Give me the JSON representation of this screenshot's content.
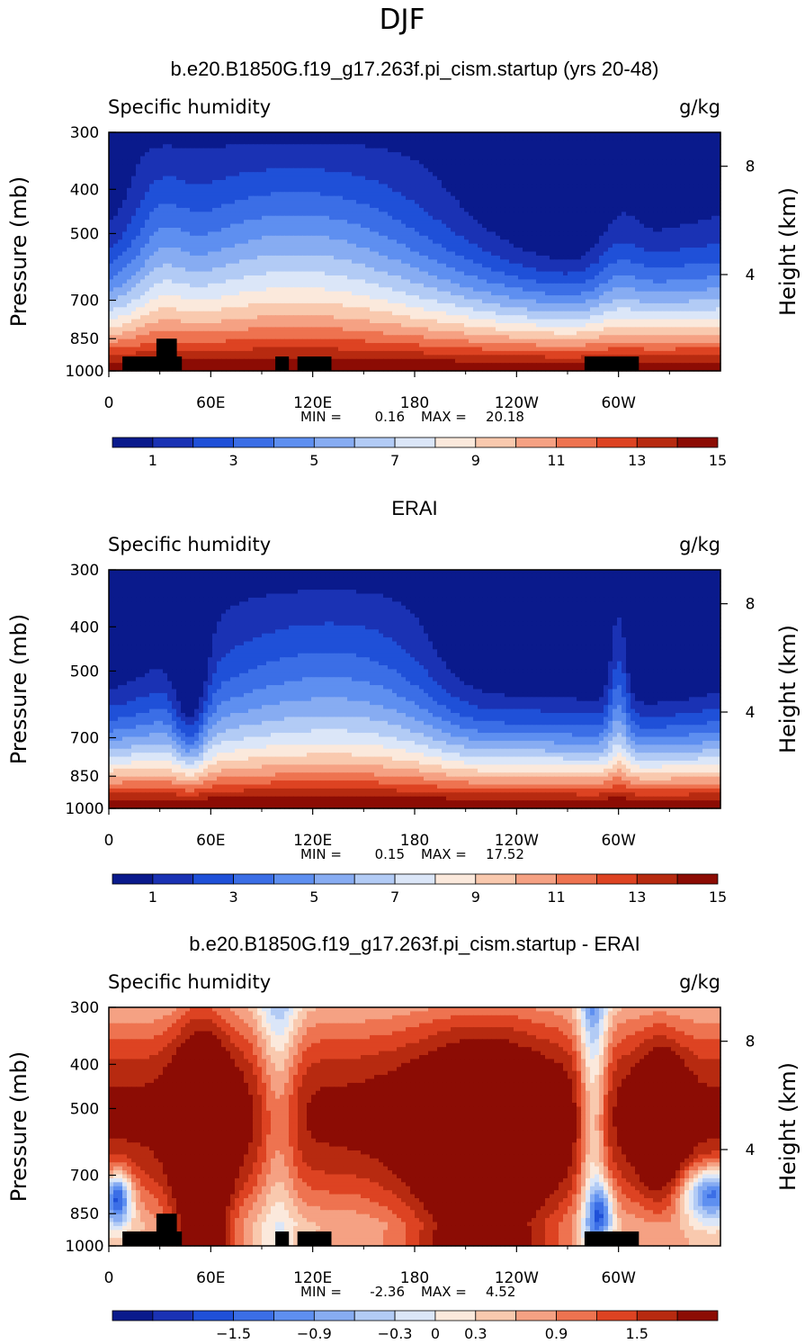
{
  "figure": {
    "title": "DJF",
    "panel_titles": [
      "b.e20.B1850G.f19_g17.263f.pi_cism.startup (yrs 20-48)",
      "ERAI",
      "b.e20.B1850G.f19_g17.263f.pi_cism.startup - ERAI"
    ],
    "colors": {
      "abs_scale": [
        "#0a1a8c",
        "#1a32b4",
        "#1f50d8",
        "#3b6ee6",
        "#5e8ff0",
        "#87acf2",
        "#b2cbf5",
        "#dbe6f8",
        "#fbe9dc",
        "#f9c9ae",
        "#f5a183",
        "#ee7350",
        "#dd4322",
        "#b72a10",
        "#8c0c04"
      ],
      "diff_scale": [
        "#0a1a8c",
        "#1a32b4",
        "#1f50d8",
        "#3b6ee6",
        "#5e8ff0",
        "#87acf2",
        "#b2cbf5",
        "#dbe6f8",
        "#fbe9dc",
        "#f9c9ae",
        "#f5a183",
        "#ee7350",
        "#dd4322",
        "#b72a10",
        "#8c0c04"
      ],
      "land_mask": "#000000"
    }
  },
  "chart_data": [
    {
      "type": "contour",
      "title": "b.e20.B1850G.f19_g17.263f.pi_cism.startup (yrs 20-48)",
      "left_label": "Specific humidity",
      "right_label": "g/kg",
      "ylabel": "Pressure (mb)",
      "y2label": "Height (km)",
      "x_ticks": [
        "0",
        "60E",
        "120E",
        "180",
        "120W",
        "60W"
      ],
      "x_tick_values": [
        0,
        60,
        120,
        180,
        240,
        300
      ],
      "xlim": [
        0,
        360
      ],
      "y_ticks": [
        "300",
        "400",
        "500",
        "700",
        "850",
        "1000"
      ],
      "y_tick_values": [
        300,
        400,
        500,
        700,
        850,
        1000
      ],
      "ylim": [
        1000,
        300
      ],
      "y_scale": "log",
      "y2_ticks": [
        "8",
        "4"
      ],
      "y2_tick_values": [
        8,
        4
      ],
      "min_label": "MIN =",
      "min_value": "0.16",
      "max_label": "MAX =",
      "max_value": "20.18",
      "colorbar_labels": [
        "1",
        "3",
        "5",
        "7",
        "9",
        "11",
        "13",
        "15"
      ],
      "colorbar_values": [
        1,
        3,
        5,
        7,
        9,
        11,
        13,
        15
      ],
      "levels": [
        1,
        2,
        3,
        4,
        5,
        6,
        7,
        8,
        9,
        10,
        11,
        12,
        13,
        14,
        15
      ],
      "values_by_longitude": {
        "lon": [
          0,
          30,
          45,
          60,
          90,
          120,
          150,
          180,
          210,
          240,
          270,
          285,
          300,
          330,
          360
        ],
        "q_1000": [
          15.5,
          16,
          16,
          16,
          16,
          16,
          16,
          16,
          16,
          16,
          16,
          16,
          16,
          15.5,
          15.5
        ],
        "q_300": [
          0.6,
          0.8,
          0.7,
          0.8,
          0.9,
          1.1,
          1,
          0.8,
          0.6,
          0.5,
          0.6,
          0.7,
          0.8,
          0.6,
          0.6
        ]
      }
    },
    {
      "type": "contour",
      "title": "ERAI",
      "left_label": "Specific humidity",
      "right_label": "g/kg",
      "ylabel": "Pressure (mb)",
      "y2label": "Height (km)",
      "x_ticks": [
        "0",
        "60E",
        "120E",
        "180",
        "120W",
        "60W"
      ],
      "x_tick_values": [
        0,
        60,
        120,
        180,
        240,
        300
      ],
      "xlim": [
        0,
        360
      ],
      "y_ticks": [
        "300",
        "400",
        "500",
        "700",
        "850",
        "1000"
      ],
      "y_tick_values": [
        300,
        400,
        500,
        700,
        850,
        1000
      ],
      "ylim": [
        1000,
        300
      ],
      "y_scale": "log",
      "y2_ticks": [
        "8",
        "4"
      ],
      "y2_tick_values": [
        8,
        4
      ],
      "min_label": "MIN =",
      "min_value": "0.15",
      "max_label": "MAX =",
      "max_value": "17.52",
      "colorbar_labels": [
        "1",
        "3",
        "5",
        "7",
        "9",
        "11",
        "13",
        "15"
      ],
      "colorbar_values": [
        1,
        3,
        5,
        7,
        9,
        11,
        13,
        15
      ],
      "levels": [
        1,
        2,
        3,
        4,
        5,
        6,
        7,
        8,
        9,
        10,
        11,
        12,
        13,
        14,
        15
      ]
    },
    {
      "type": "contour",
      "title": "b.e20.B1850G.f19_g17.263f.pi_cism.startup - ERAI",
      "left_label": "Specific humidity",
      "right_label": "g/kg",
      "ylabel": "Pressure (mb)",
      "y2label": "Height (km)",
      "x_ticks": [
        "0",
        "60E",
        "120E",
        "180",
        "120W",
        "60W"
      ],
      "x_tick_values": [
        0,
        60,
        120,
        180,
        240,
        300
      ],
      "xlim": [
        0,
        360
      ],
      "y_ticks": [
        "300",
        "400",
        "500",
        "700",
        "850",
        "1000"
      ],
      "y_tick_values": [
        300,
        400,
        500,
        700,
        850,
        1000
      ],
      "ylim": [
        1000,
        300
      ],
      "y_scale": "log",
      "y2_ticks": [
        "8",
        "4"
      ],
      "y2_tick_values": [
        8,
        4
      ],
      "min_label": "MIN =",
      "min_value": "-2.36",
      "max_label": "MAX =",
      "max_value": "4.52",
      "colorbar_labels": [
        "−1.5",
        "−0.9",
        "−0.3",
        "0",
        "0.3",
        "0.9",
        "1.5"
      ],
      "colorbar_values": [
        -1.5,
        -0.9,
        -0.3,
        0,
        0.3,
        0.9,
        1.5
      ],
      "levels": [
        -2.1,
        -1.8,
        -1.5,
        -1.2,
        -0.9,
        -0.6,
        -0.3,
        0,
        0.3,
        0.6,
        0.9,
        1.2,
        1.5,
        1.8
      ]
    }
  ]
}
